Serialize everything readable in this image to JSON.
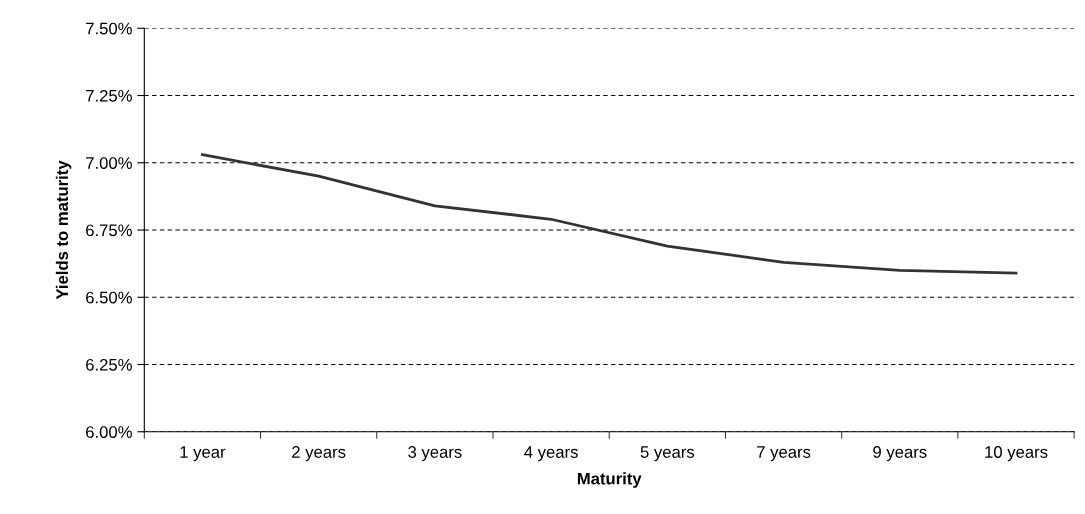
{
  "chart_data": {
    "type": "line",
    "xlabel": "Maturity",
    "ylabel": "Yields to maturity",
    "categories": [
      "1 year",
      "2 years",
      "3 years",
      "4 years",
      "5 years",
      "7 years",
      "9 years",
      "10 years"
    ],
    "series": [
      {
        "color": "#333333",
        "values": [
          7.03,
          6.95,
          6.84,
          6.79,
          6.69,
          6.63,
          6.6,
          6.59
        ]
      }
    ],
    "ylim": [
      6.0,
      7.5
    ],
    "yticks": [
      {
        "value": 6.0,
        "label": "6.00%"
      },
      {
        "value": 6.25,
        "label": "6.25%"
      },
      {
        "value": 6.5,
        "label": "6.50%"
      },
      {
        "value": 6.75,
        "label": "6.75%"
      },
      {
        "value": 7.0,
        "label": "7.00%"
      },
      {
        "value": 7.25,
        "label": "7.25%"
      },
      {
        "value": 7.5,
        "label": "7.50%"
      }
    ],
    "grid": "y",
    "line_style": "solid",
    "marker": "none"
  }
}
